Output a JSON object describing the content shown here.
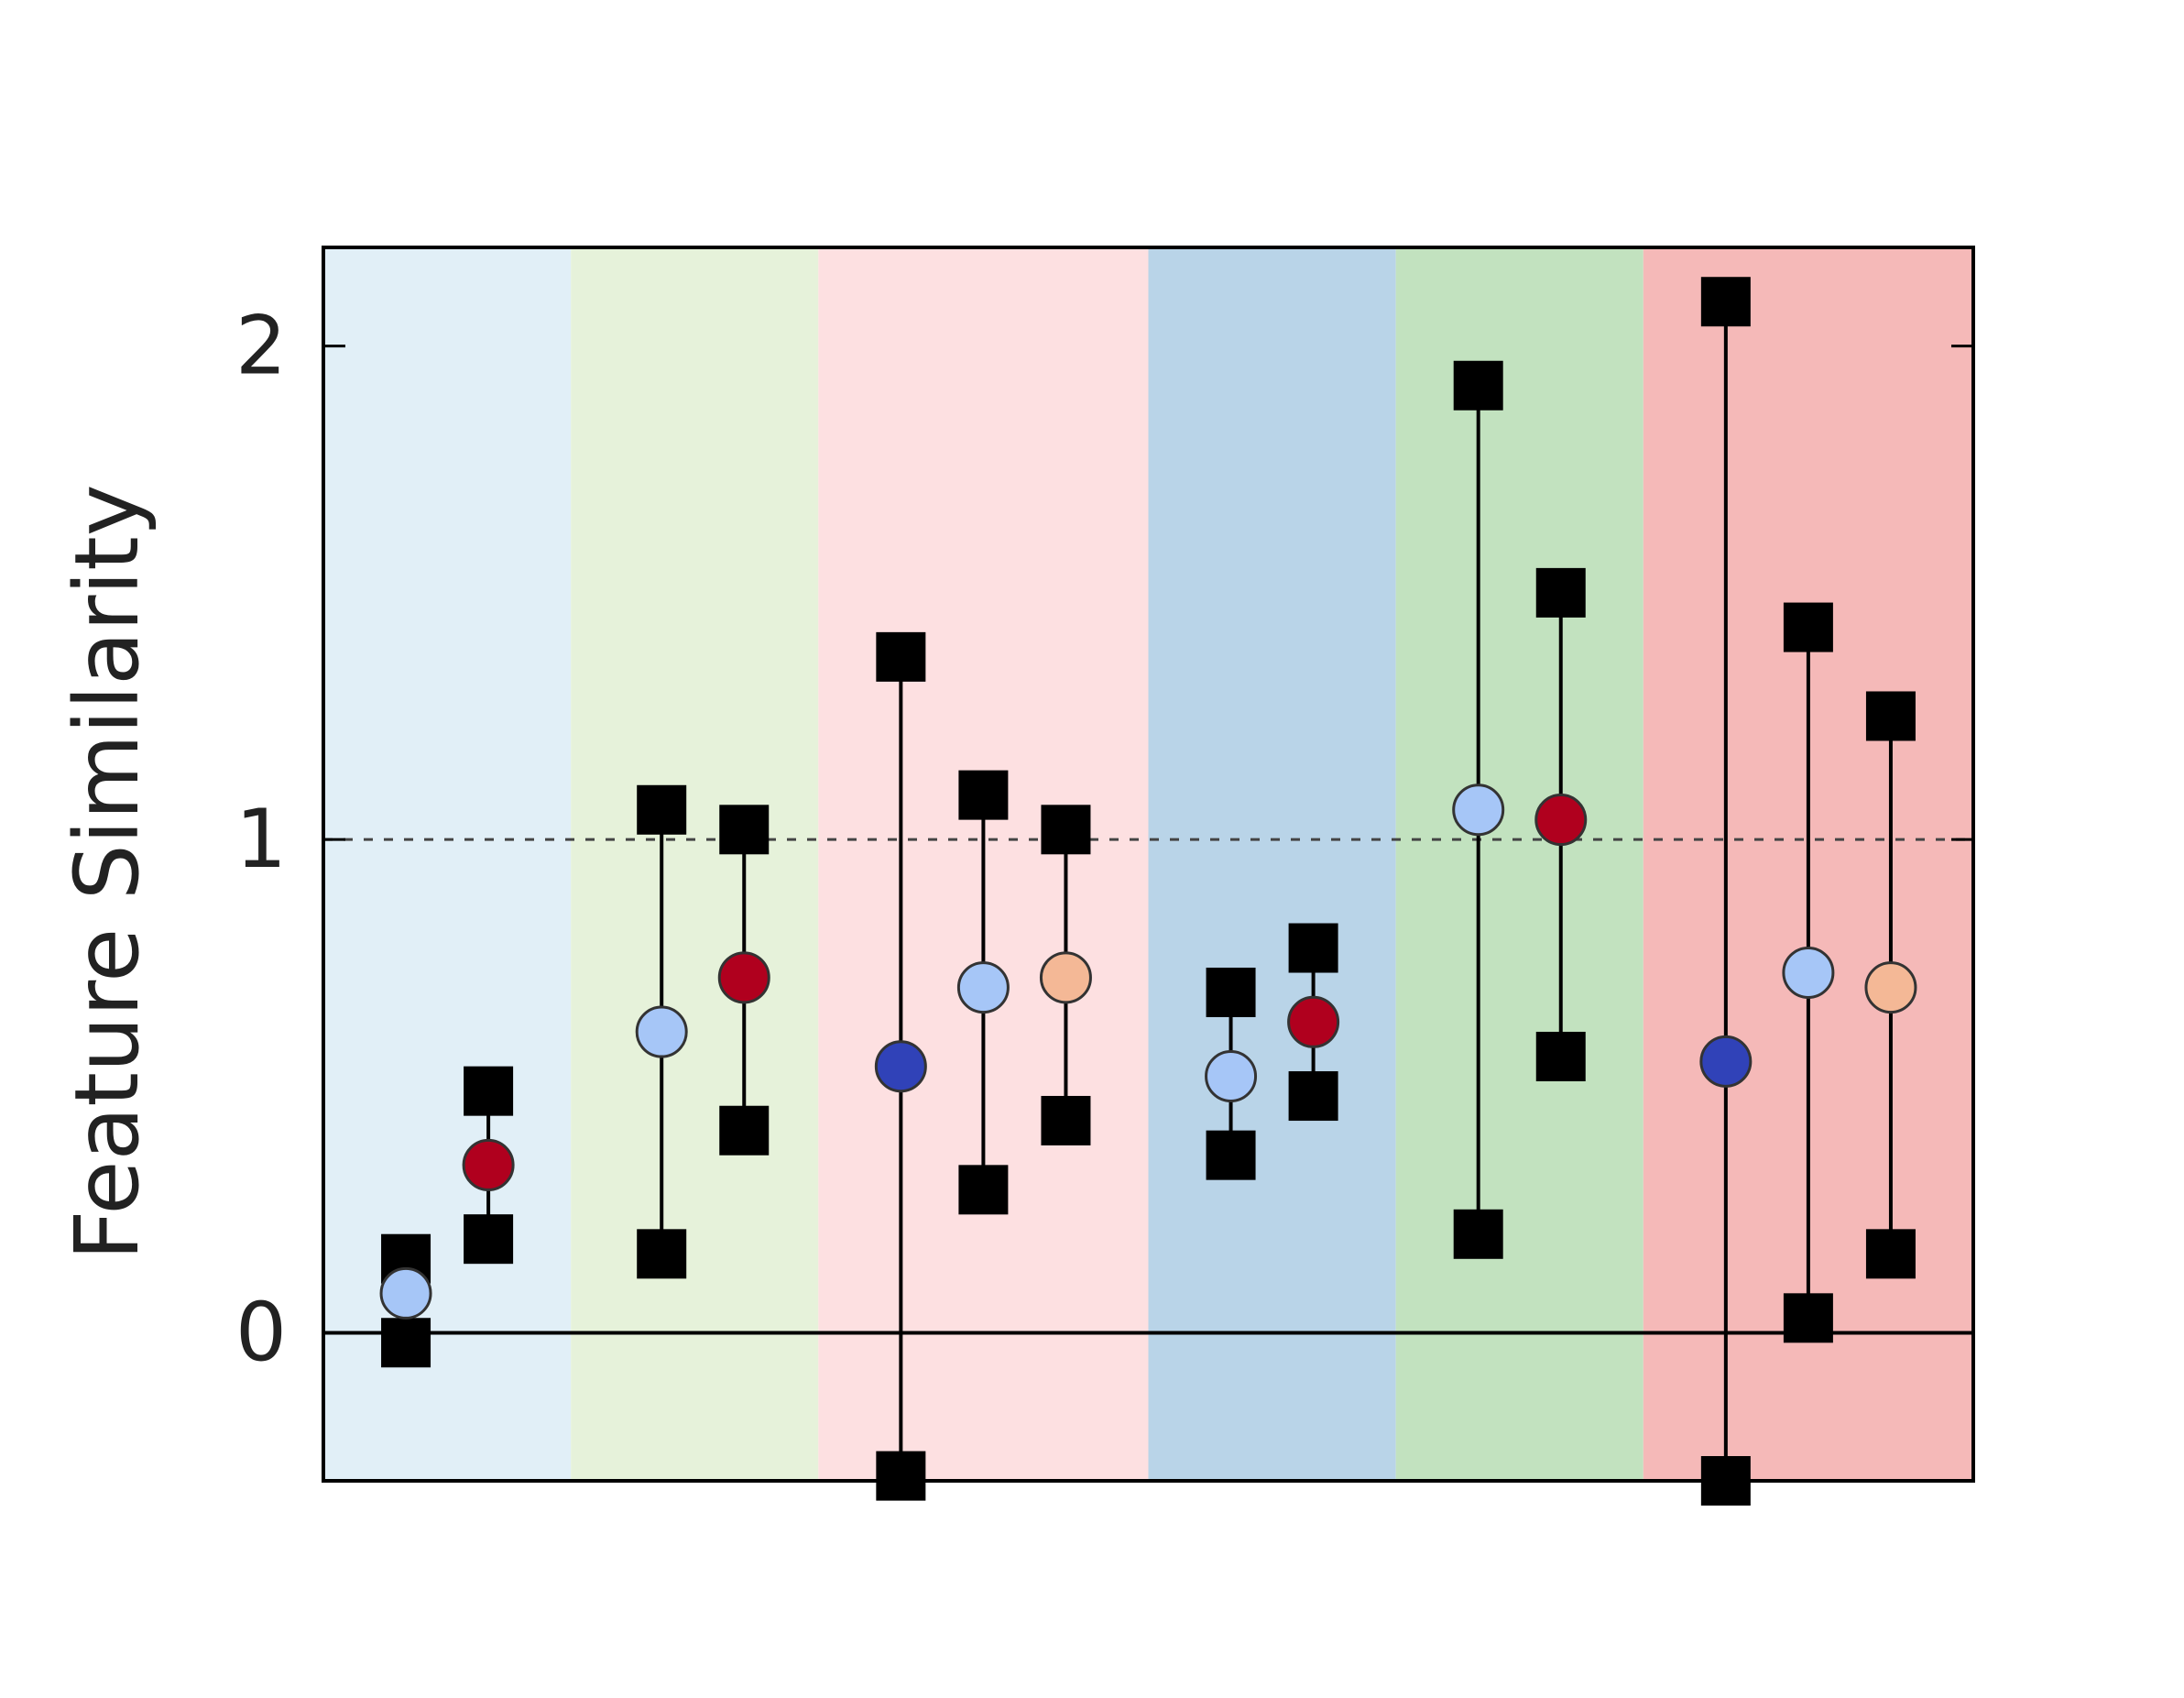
{
  "chart_data": {
    "type": "scatter",
    "title": "",
    "xlabel": "",
    "ylabel": "Feature Similarity",
    "ylim": [
      -0.3,
      2.2
    ],
    "yticks": [
      0,
      1,
      2
    ],
    "xticks": [],
    "grid": false,
    "legend": "none",
    "reference_lines": [
      {
        "y": 0,
        "style": "solid"
      },
      {
        "y": 1,
        "style": "dashed"
      }
    ],
    "colors": {
      "light_blue_marker": "#a6c6f7",
      "dark_red_marker": "#b0001e",
      "dark_blue_marker": "#3042b8",
      "peach_marker": "#f4b896",
      "errorbar_cap": "#000000"
    },
    "bands": [
      {
        "x_start": 0.5,
        "x_end": 3.5,
        "color": "#e1eff7"
      },
      {
        "x_start": 3.5,
        "x_end": 6.5,
        "color": "#e6f2da"
      },
      {
        "x_start": 6.5,
        "x_end": 10.5,
        "color": "#fde0e1"
      },
      {
        "x_start": 10.5,
        "x_end": 13.5,
        "color": "#b9d4e8"
      },
      {
        "x_start": 13.5,
        "x_end": 16.5,
        "color": "#c2e2bf"
      },
      {
        "x_start": 16.5,
        "x_end": 20.5,
        "color": "#f5b9b8"
      }
    ],
    "xlim": [
      0.5,
      20.5
    ],
    "points": [
      {
        "x": 1.5,
        "y": 0.08,
        "low": -0.02,
        "high": 0.15,
        "color": "light_blue_marker"
      },
      {
        "x": 2.5,
        "y": 0.34,
        "low": 0.19,
        "high": 0.49,
        "color": "dark_red_marker"
      },
      {
        "x": 4.6,
        "y": 0.61,
        "low": 0.16,
        "high": 1.06,
        "color": "light_blue_marker"
      },
      {
        "x": 5.6,
        "y": 0.72,
        "low": 0.41,
        "high": 1.02,
        "color": "dark_red_marker"
      },
      {
        "x": 7.5,
        "y": 0.54,
        "low": -0.29,
        "high": 1.37,
        "color": "dark_blue_marker"
      },
      {
        "x": 8.5,
        "y": 0.7,
        "low": 0.29,
        "high": 1.09,
        "color": "light_blue_marker"
      },
      {
        "x": 9.5,
        "y": 0.72,
        "low": 0.43,
        "high": 1.02,
        "color": "peach_marker"
      },
      {
        "x": 11.5,
        "y": 0.52,
        "low": 0.36,
        "high": 0.69,
        "color": "light_blue_marker"
      },
      {
        "x": 12.5,
        "y": 0.63,
        "low": 0.48,
        "high": 0.78,
        "color": "dark_red_marker"
      },
      {
        "x": 14.5,
        "y": 1.06,
        "low": 0.2,
        "high": 1.92,
        "color": "light_blue_marker"
      },
      {
        "x": 15.5,
        "y": 1.04,
        "low": 0.56,
        "high": 1.5,
        "color": "dark_red_marker"
      },
      {
        "x": 17.5,
        "y": 0.55,
        "low": -0.3,
        "high": 2.09,
        "color": "dark_blue_marker"
      },
      {
        "x": 18.5,
        "y": 0.73,
        "low": 0.03,
        "high": 1.43,
        "color": "light_blue_marker"
      },
      {
        "x": 19.5,
        "y": 0.7,
        "low": 0.16,
        "high": 1.25,
        "color": "peach_marker"
      }
    ]
  }
}
